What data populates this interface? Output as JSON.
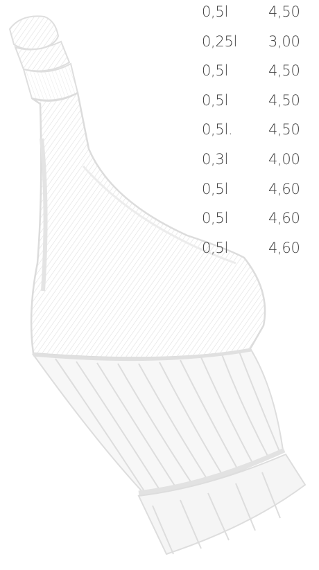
{
  "prices": [
    {
      "volume": "0,5l",
      "price": "4,50"
    },
    {
      "volume": "0,25l",
      "price": "3,00"
    },
    {
      "volume": "0,5l",
      "price": "4,50"
    },
    {
      "volume": "0,5l",
      "price": "4,50"
    },
    {
      "volume": "0,5l.",
      "price": "4,50"
    },
    {
      "volume": "0,3l",
      "price": "4,00"
    },
    {
      "volume": "0,5l",
      "price": "4,60"
    },
    {
      "volume": "0,5l",
      "price": "4,60"
    },
    {
      "volume": "0,5l",
      "price": "4,60"
    }
  ],
  "colors": {
    "text": "#3f3f3f",
    "illustration": "#dcdcdc"
  },
  "illustration": {
    "icon": "wine-bottle-fiasco-icon"
  }
}
